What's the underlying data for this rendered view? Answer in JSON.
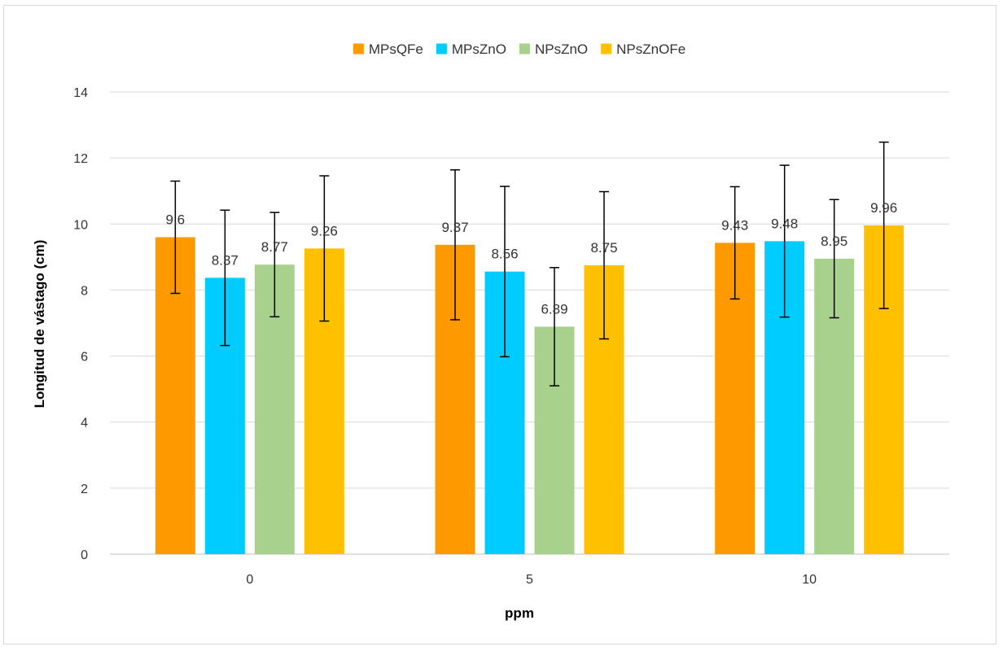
{
  "chart_data": {
    "type": "bar",
    "title": "",
    "xlabel": "ppm",
    "ylabel": "Longitud de vástago (cm)",
    "categories": [
      "0",
      "5",
      "10"
    ],
    "ylim": [
      0,
      14
    ],
    "yticks": [
      "0",
      "2",
      "4",
      "6",
      "8",
      "10",
      "12",
      "14"
    ],
    "grid": true,
    "legend_position": "top",
    "series": [
      {
        "name": "MPsQFe",
        "color": "#FF9900",
        "values": [
          9.6,
          9.37,
          9.43
        ],
        "labels": [
          "9.6",
          "9.37",
          "9.43"
        ],
        "error": [
          1.7,
          2.27,
          1.7
        ]
      },
      {
        "name": "MPsZnO",
        "color": "#00CCFF",
        "values": [
          8.37,
          8.56,
          9.48
        ],
        "labels": [
          "8.37",
          "8.56",
          "9.48"
        ],
        "error": [
          2.05,
          2.58,
          2.3
        ]
      },
      {
        "name": "NPsZnO",
        "color": "#A9D18E",
        "values": [
          8.77,
          6.89,
          8.95
        ],
        "labels": [
          "8.77",
          "6.89",
          "8.95"
        ],
        "error": [
          1.58,
          1.79,
          1.79
        ]
      },
      {
        "name": "NPsZnOFe",
        "color": "#FFC000",
        "values": [
          9.26,
          8.75,
          9.96
        ],
        "labels": [
          "9.26",
          "8.75",
          "9.96"
        ],
        "error": [
          2.2,
          2.23,
          2.52
        ]
      }
    ]
  }
}
